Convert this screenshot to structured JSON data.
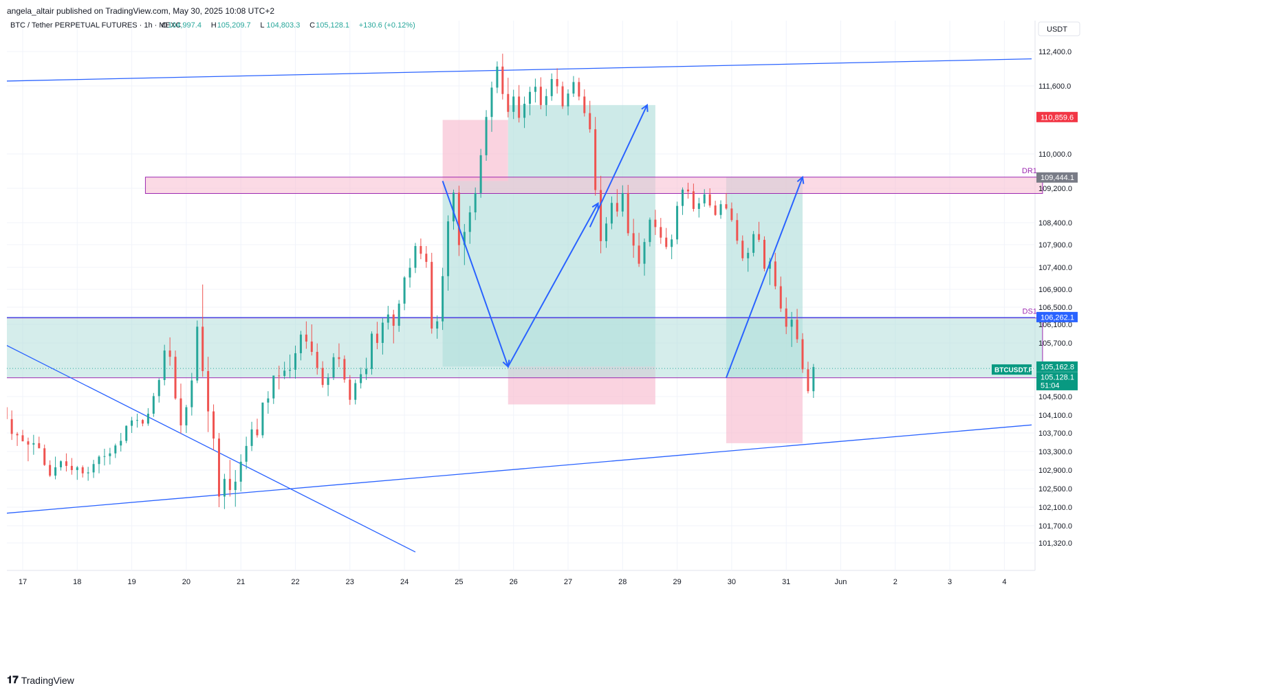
{
  "header": {
    "publisher": "angela_altair published on TradingView.com, May 30, 2025 10:08 UTC+2"
  },
  "footer": {
    "brand": "TradingView"
  },
  "colors": {
    "up": "#26a69a",
    "down": "#ef5350",
    "trendline": "#2962ff",
    "zone_border": "#9c27b0",
    "zone_red_fill": "#f8bbd0",
    "zone_green_fill": "#b2dfdb",
    "price_red": "#f23645",
    "price_green": "#089981",
    "price_blue": "#2962ff",
    "price_grey": "#787b86"
  },
  "chart_data": {
    "type": "candlestick",
    "symbol_line": {
      "name": "BTC / Tether PERPETUAL FUTURES · 1h · MEXC",
      "o_label": "O",
      "o": "104,997.4",
      "h_label": "H",
      "h": "105,209.7",
      "l_label": "L",
      "l": "104,803.3",
      "c_label": "C",
      "c": "105,128.1",
      "change": "+130.6 (+0.12%)"
    },
    "currency": "USDT",
    "y_axis_ticks": [
      "112,400.0",
      "111,600.0",
      "110,000.0",
      "109,200.0",
      "108,400.0",
      "107,900.0",
      "107,400.0",
      "106,900.0",
      "106,500.0",
      "106,100.0",
      "105,700.0",
      "104,500.0",
      "104,100.0",
      "103,700.0",
      "103,300.0",
      "102,900.0",
      "102,500.0",
      "102,100.0",
      "101,700.0",
      "101,320.0"
    ],
    "x_axis_ticks": [
      "17",
      "18",
      "19",
      "20",
      "21",
      "22",
      "23",
      "24",
      "25",
      "26",
      "27",
      "28",
      "29",
      "30",
      "31",
      "Jun",
      "2",
      "3",
      "4"
    ],
    "x_axis_tick_days": [
      17,
      18,
      19,
      20,
      21,
      22,
      23,
      24,
      25,
      26,
      27,
      28,
      29,
      30,
      31,
      32,
      33,
      34,
      35
    ],
    "price_labels": [
      {
        "value": "110,859.6",
        "price": 110859.6,
        "style": "red"
      },
      {
        "value": "109,444.1",
        "price": 109444.1,
        "style": "grey"
      },
      {
        "value": "106,262.1",
        "price": 106262.1,
        "style": "blue"
      },
      {
        "value": "105,162.8",
        "price": 105162.8,
        "style": "green"
      },
      {
        "value": "105,128.1",
        "price": 105128.1,
        "style": "green"
      },
      {
        "value": "51:04",
        "price": 104990,
        "style": "green"
      }
    ],
    "symbol_tag": "BTCUSDT.P",
    "zones": [
      {
        "label": "DR1",
        "day_start": 19.25,
        "day_end": 35.7,
        "top": 109460,
        "bottom": 109080
      },
      {
        "label": "DS1",
        "day_start": 16.6,
        "day_end": 35.7,
        "top": 106250,
        "bottom": 104920
      }
    ],
    "positions": [
      {
        "day_start": 24.7,
        "day_end": 25.9,
        "entry": 109370,
        "target": 105170,
        "stop": 110800
      },
      {
        "day_start": 25.9,
        "day_end": 28.6,
        "entry": 105170,
        "target": 111150,
        "stop": 104330
      },
      {
        "day_start": 29.9,
        "day_end": 31.3,
        "entry": 104920,
        "target": 109460,
        "stop": 103480
      }
    ],
    "trendlines": [
      {
        "d1": 16.6,
        "p1": 111710,
        "d2": 35.5,
        "p2": 112230
      },
      {
        "d1": 16.6,
        "p1": 101960,
        "d2": 35.5,
        "p2": 103880
      },
      {
        "d1": 16.6,
        "p1": 105710,
        "d2": 24.2,
        "p2": 101120
      }
    ],
    "arrows": [
      {
        "points": [
          [
            24.7,
            109370
          ],
          [
            25.9,
            105170
          ],
          [
            27.55,
            108850
          ]
        ]
      },
      {
        "points": [
          [
            27.4,
            108300
          ],
          [
            28.45,
            111150
          ]
        ]
      },
      {
        "points": [
          [
            29.9,
            104920
          ],
          [
            31.3,
            109460
          ]
        ]
      }
    ],
    "candles": [
      [
        16.6,
        104460,
        104690,
        103780,
        104270
      ],
      [
        16.7,
        104270,
        104410,
        103640,
        104010
      ],
      [
        16.8,
        104010,
        104200,
        103550,
        103680
      ],
      [
        16.9,
        103680,
        103720,
        103420,
        103650
      ],
      [
        17.0,
        103650,
        103770,
        103520,
        103520
      ],
      [
        17.1,
        103520,
        103600,
        103090,
        103450
      ],
      [
        17.2,
        103450,
        103660,
        103230,
        103480
      ],
      [
        17.3,
        103480,
        103620,
        103370,
        103370
      ],
      [
        17.4,
        103370,
        103450,
        102990,
        103010
      ],
      [
        17.5,
        103010,
        103110,
        102750,
        102780
      ],
      [
        17.6,
        102780,
        103190,
        102700,
        102960
      ],
      [
        17.7,
        102960,
        103110,
        102890,
        103090
      ],
      [
        17.8,
        103090,
        103260,
        102870,
        102990
      ],
      [
        17.9,
        102990,
        103160,
        102800,
        102900
      ],
      [
        18.0,
        102900,
        102990,
        102690,
        102960
      ],
      [
        18.1,
        102960,
        103000,
        102740,
        102830
      ],
      [
        18.2,
        102830,
        102970,
        102670,
        102850
      ],
      [
        18.3,
        102850,
        103120,
        102730,
        103030
      ],
      [
        18.4,
        103030,
        103220,
        102830,
        103190
      ],
      [
        18.5,
        103190,
        103360,
        103000,
        103200
      ],
      [
        18.6,
        103200,
        103380,
        103020,
        103260
      ],
      [
        18.7,
        103260,
        103470,
        103160,
        103430
      ],
      [
        18.8,
        103430,
        103700,
        103300,
        103530
      ],
      [
        18.9,
        103530,
        103870,
        103480,
        103860
      ],
      [
        19.0,
        103860,
        104060,
        103700,
        103980
      ],
      [
        19.1,
        103980,
        104130,
        103820,
        103990
      ],
      [
        19.2,
        103990,
        104010,
        103850,
        103910
      ],
      [
        19.3,
        103910,
        104250,
        103860,
        104130
      ],
      [
        19.4,
        104130,
        104580,
        104060,
        104510
      ],
      [
        19.5,
        104510,
        104910,
        104370,
        104870
      ],
      [
        19.6,
        104870,
        105660,
        104750,
        105530
      ],
      [
        19.7,
        105530,
        105820,
        105190,
        105390
      ],
      [
        19.8,
        105390,
        105530,
        104430,
        104460
      ],
      [
        19.9,
        104460,
        104790,
        103690,
        103870
      ],
      [
        20.0,
        103870,
        104320,
        103700,
        104270
      ],
      [
        20.1,
        104270,
        105030,
        104090,
        104860
      ],
      [
        20.2,
        104860,
        106190,
        104800,
        106050
      ],
      [
        20.3,
        106050,
        107010,
        104940,
        105070
      ],
      [
        20.4,
        105070,
        105390,
        103720,
        104180
      ],
      [
        20.5,
        104180,
        104330,
        103330,
        103580
      ],
      [
        20.6,
        103580,
        103700,
        102100,
        102330
      ],
      [
        20.7,
        102330,
        102820,
        102060,
        102710
      ],
      [
        20.8,
        102710,
        103120,
        102330,
        102470
      ],
      [
        20.9,
        102470,
        102900,
        102110,
        102650
      ],
      [
        21.0,
        102650,
        103240,
        102440,
        103080
      ],
      [
        21.1,
        103080,
        103620,
        102920,
        103420
      ],
      [
        21.2,
        103420,
        103950,
        103310,
        103780
      ],
      [
        21.3,
        103780,
        104020,
        103600,
        103650
      ],
      [
        21.4,
        103650,
        104370,
        103590,
        104370
      ],
      [
        21.5,
        104370,
        104620,
        104130,
        104460
      ],
      [
        21.6,
        104460,
        104970,
        104340,
        104970
      ],
      [
        21.7,
        104970,
        105190,
        104660,
        104960
      ],
      [
        21.8,
        104960,
        105280,
        104890,
        105080
      ],
      [
        21.9,
        105080,
        105440,
        104910,
        105100
      ],
      [
        22.0,
        105100,
        105640,
        104900,
        105470
      ],
      [
        22.1,
        105470,
        105960,
        105310,
        105880
      ],
      [
        22.2,
        105880,
        106170,
        105570,
        105730
      ],
      [
        22.3,
        105730,
        106100,
        105420,
        105500
      ],
      [
        22.4,
        105500,
        105690,
        104990,
        105140
      ],
      [
        22.5,
        105140,
        105290,
        104700,
        104760
      ],
      [
        22.6,
        104760,
        105020,
        104510,
        104930
      ],
      [
        22.7,
        104930,
        105470,
        104870,
        105380
      ],
      [
        22.8,
        105380,
        105690,
        105160,
        105340
      ],
      [
        22.9,
        105340,
        105420,
        104810,
        104880
      ],
      [
        23.0,
        104880,
        104980,
        104320,
        104430
      ],
      [
        23.1,
        104430,
        104880,
        104330,
        104800
      ],
      [
        23.2,
        104800,
        105150,
        104680,
        105000
      ],
      [
        23.3,
        105000,
        105370,
        104870,
        105120
      ],
      [
        23.4,
        105120,
        105950,
        104990,
        105900
      ],
      [
        23.5,
        105900,
        106160,
        105560,
        105700
      ],
      [
        23.6,
        105700,
        106250,
        105440,
        106140
      ],
      [
        23.7,
        106140,
        106530,
        105990,
        106330
      ],
      [
        23.8,
        106330,
        106440,
        105690,
        106070
      ],
      [
        23.9,
        106070,
        106660,
        105940,
        106580
      ],
      [
        24.0,
        106580,
        107200,
        106430,
        107170
      ],
      [
        24.1,
        107170,
        107600,
        106940,
        107390
      ],
      [
        24.2,
        107390,
        107940,
        107270,
        107870
      ],
      [
        24.3,
        107870,
        108040,
        107580,
        107700
      ],
      [
        24.4,
        107700,
        107870,
        107390,
        107520
      ],
      [
        24.5,
        107520,
        107720,
        105900,
        106010
      ],
      [
        24.6,
        106010,
        106310,
        105790,
        106170
      ],
      [
        24.7,
        106170,
        107390,
        105980,
        107200
      ],
      [
        24.8,
        107200,
        108570,
        106870,
        108430
      ],
      [
        24.9,
        108430,
        109170,
        108240,
        109100
      ],
      [
        25.0,
        109100,
        109260,
        107650,
        107890
      ],
      [
        25.1,
        107890,
        108370,
        107450,
        108190
      ],
      [
        25.2,
        108190,
        108790,
        107920,
        108640
      ],
      [
        25.3,
        108640,
        109220,
        108460,
        109090
      ],
      [
        25.4,
        109090,
        110120,
        108980,
        109970
      ],
      [
        25.5,
        109970,
        111030,
        109840,
        110870
      ],
      [
        25.6,
        110870,
        111700,
        110520,
        111560
      ],
      [
        25.7,
        111560,
        112170,
        111430,
        112050
      ],
      [
        25.8,
        112050,
        112350,
        111280,
        111410
      ],
      [
        25.9,
        111410,
        111790,
        110860,
        110990
      ],
      [
        26.0,
        110990,
        111510,
        110820,
        111350
      ],
      [
        26.1,
        111350,
        111620,
        110740,
        110850
      ],
      [
        26.2,
        110850,
        111350,
        110610,
        111180
      ],
      [
        26.3,
        111180,
        111580,
        110910,
        111460
      ],
      [
        26.4,
        111460,
        111770,
        111210,
        111580
      ],
      [
        26.5,
        111580,
        111800,
        111050,
        111150
      ],
      [
        26.6,
        111150,
        111530,
        110890,
        111360
      ],
      [
        26.7,
        111360,
        111890,
        111250,
        111760
      ],
      [
        26.8,
        111760,
        112010,
        111420,
        111590
      ],
      [
        26.9,
        111590,
        111700,
        111060,
        111120
      ],
      [
        27.0,
        111120,
        111520,
        110910,
        111420
      ],
      [
        27.1,
        111420,
        111830,
        111340,
        111690
      ],
      [
        27.2,
        111690,
        111790,
        111260,
        111350
      ],
      [
        27.3,
        111350,
        111520,
        110880,
        110960
      ],
      [
        27.4,
        110960,
        111250,
        110500,
        110580
      ],
      [
        27.5,
        110580,
        110870,
        109030,
        109160
      ],
      [
        27.6,
        109160,
        109490,
        107710,
        107980
      ],
      [
        27.7,
        107980,
        108530,
        107830,
        108380
      ],
      [
        27.8,
        108380,
        109010,
        108250,
        108860
      ],
      [
        27.9,
        108860,
        109180,
        108540,
        108660
      ],
      [
        28.0,
        108660,
        109270,
        108540,
        109090
      ],
      [
        28.1,
        109090,
        109280,
        108100,
        108160
      ],
      [
        28.2,
        108160,
        108490,
        107610,
        107880
      ],
      [
        28.3,
        107880,
        108170,
        107410,
        107480
      ],
      [
        28.4,
        107480,
        108040,
        107210,
        107960
      ],
      [
        28.5,
        107960,
        108520,
        107860,
        108470
      ],
      [
        28.6,
        108470,
        108700,
        108120,
        108300
      ],
      [
        28.7,
        108300,
        108510,
        107920,
        108060
      ],
      [
        28.8,
        108060,
        108280,
        107800,
        107850
      ],
      [
        28.9,
        107850,
        108130,
        107580,
        108020
      ],
      [
        29.0,
        108020,
        108890,
        107910,
        108790
      ],
      [
        29.1,
        108790,
        109220,
        108580,
        109170
      ],
      [
        29.2,
        109170,
        109330,
        108960,
        109130
      ],
      [
        29.3,
        109130,
        109310,
        108660,
        108720
      ],
      [
        29.4,
        108720,
        108980,
        108520,
        108850
      ],
      [
        29.5,
        108850,
        109180,
        108770,
        109060
      ],
      [
        29.6,
        109060,
        109200,
        108750,
        108800
      ],
      [
        29.7,
        108800,
        108910,
        108560,
        108580
      ],
      [
        29.8,
        108580,
        108920,
        108490,
        108830
      ],
      [
        29.9,
        108830,
        109090,
        108700,
        108730
      ],
      [
        30.0,
        108730,
        108870,
        108420,
        108460
      ],
      [
        30.1,
        108460,
        108620,
        107910,
        107990
      ],
      [
        30.2,
        107990,
        108110,
        107540,
        107600
      ],
      [
        30.3,
        107600,
        107830,
        107300,
        107720
      ],
      [
        30.4,
        107720,
        108210,
        107640,
        108140
      ],
      [
        30.5,
        108140,
        108420,
        107960,
        108010
      ],
      [
        30.6,
        108010,
        108090,
        107310,
        107370
      ],
      [
        30.7,
        107370,
        107610,
        107000,
        107530
      ],
      [
        30.8,
        107530,
        107720,
        106900,
        106970
      ],
      [
        30.9,
        106970,
        107190,
        106390,
        106470
      ],
      [
        31.0,
        106470,
        106720,
        105890,
        106050
      ],
      [
        31.1,
        106050,
        106390,
        105610,
        106210
      ],
      [
        31.2,
        106210,
        106460,
        105700,
        105780
      ],
      [
        31.3,
        105780,
        105910,
        105030,
        105110
      ],
      [
        31.4,
        105110,
        105280,
        104570,
        104620
      ],
      [
        31.5,
        104620,
        105230,
        104470,
        105160
      ]
    ]
  }
}
